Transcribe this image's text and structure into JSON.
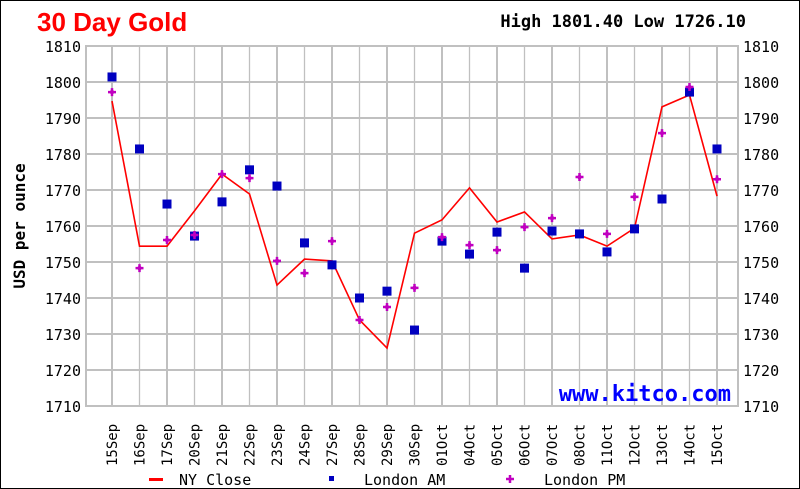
{
  "chart_data": {
    "type": "line",
    "title": "30 Day Gold",
    "subtitle": "High 1801.40 Low 1726.10",
    "ylabel": "USD per ounce",
    "xlabel": "",
    "watermark": "www.kitco.com",
    "ylim": [
      1710,
      1810
    ],
    "yticks": [
      1710,
      1720,
      1730,
      1740,
      1750,
      1760,
      1770,
      1780,
      1790,
      1800,
      1810
    ],
    "grid": true,
    "legend_placement": "bottom",
    "categories": [
      "15Sep",
      "16Sep",
      "17Sep",
      "20Sep",
      "21Sep",
      "22Sep",
      "23Sep",
      "24Sep",
      "27Sep",
      "28Sep",
      "29Sep",
      "30Sep",
      "01Oct",
      "04Oct",
      "05Oct",
      "06Oct",
      "07Oct",
      "08Oct",
      "11Oct",
      "12Oct",
      "13Oct",
      "14Oct",
      "15Oct"
    ],
    "series": [
      {
        "name": "NY Close",
        "mark": "line",
        "color": "#ff0000",
        "values": [
          1794.7,
          1754.4,
          1754.4,
          1764.2,
          1774.4,
          1768.9,
          1743.6,
          1750.8,
          1750.3,
          1733.9,
          1726.1,
          1758.0,
          1761.7,
          1770.6,
          1761.1,
          1763.9,
          1756.4,
          1757.5,
          1754.4,
          1759.4,
          1793.1,
          1796.4,
          1768.3
        ]
      },
      {
        "name": "London AM",
        "mark": "square",
        "color": "#0000c0",
        "values": [
          1801.4,
          1781.4,
          1766.1,
          1757.2,
          1766.7,
          1775.6,
          1771.1,
          1755.3,
          1749.2,
          1740.0,
          1741.9,
          1731.1,
          1755.8,
          1752.2,
          1758.3,
          1748.3,
          1758.6,
          1757.8,
          1752.8,
          1759.2,
          1767.5,
          1797.2,
          1781.4
        ]
      },
      {
        "name": "London PM",
        "mark": "star",
        "color": "#c000c0",
        "values": [
          1797.2,
          1748.3,
          1756.1,
          1757.5,
          1774.4,
          1773.3,
          1750.3,
          1746.9,
          1755.8,
          1733.9,
          1737.5,
          1742.8,
          1756.9,
          1754.7,
          1753.3,
          1759.7,
          1762.2,
          1773.6,
          1757.8,
          1768.1,
          1785.8,
          1798.6,
          1773.0
        ]
      }
    ],
    "colors": {
      "title": "#ff0000",
      "grid": "#c0c0c0",
      "watermark": "#0000ff"
    }
  }
}
